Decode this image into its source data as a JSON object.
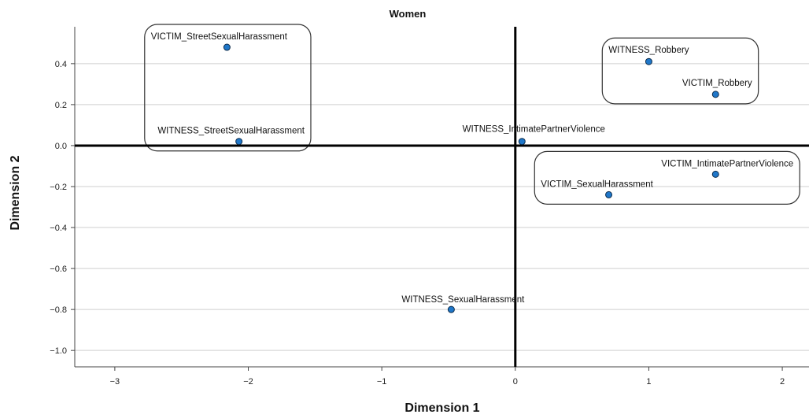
{
  "chart_data": {
    "type": "scatter",
    "title": "Women",
    "xlabel": "Dimension 1",
    "ylabel": "Dimension 2",
    "xlim": [
      -3.3,
      2.2
    ],
    "ylim": [
      -1.08,
      0.58
    ],
    "x_ticks": [
      -3,
      -2,
      -1,
      0,
      1,
      2
    ],
    "x_tick_labels": [
      "−3",
      "−2",
      "−1",
      "0",
      "1",
      "2"
    ],
    "y_ticks": [
      0.4,
      0.2,
      0.0,
      -0.2,
      -0.4,
      -0.6,
      -0.8,
      -1.0
    ],
    "y_tick_labels": [
      "0.4",
      "0.2",
      "0.0",
      "−0.2",
      "−0.4",
      "−0.6",
      "−0.8",
      "−1.0"
    ],
    "grid": "horizontal",
    "reference_lines": {
      "x": 0,
      "y": 0
    },
    "points": [
      {
        "label": "VICTIM_StreetSexualHarassment",
        "x": -2.16,
        "y": 0.48
      },
      {
        "label": "WITNESS_StreetSexualHarassment",
        "x": -2.07,
        "y": 0.02
      },
      {
        "label": "WITNESS_IntimatePartnerViolence",
        "x": 0.05,
        "y": 0.02
      },
      {
        "label": "WITNESS_Robbery",
        "x": 1.0,
        "y": 0.41
      },
      {
        "label": "VICTIM_Robbery",
        "x": 1.5,
        "y": 0.25
      },
      {
        "label": "VICTIM_IntimatePartnerViolence",
        "x": 1.5,
        "y": -0.14
      },
      {
        "label": "VICTIM_SexualHarassment",
        "x": 0.7,
        "y": -0.24
      },
      {
        "label": "WITNESS_SexualHarassment",
        "x": -0.48,
        "y": -0.8
      }
    ],
    "groups": [
      [
        "VICTIM_StreetSexualHarassment",
        "WITNESS_StreetSexualHarassment"
      ],
      [
        "WITNESS_Robbery",
        "VICTIM_Robbery"
      ],
      [
        "VICTIM_IntimatePartnerViolence",
        "VICTIM_SexualHarassment"
      ]
    ],
    "colors": {
      "point_fill": "#1f77c9",
      "point_stroke": "#0b2a4a",
      "gridline": "#cfcfcf",
      "reference_line": "#000000",
      "group_box": "#333333"
    }
  }
}
